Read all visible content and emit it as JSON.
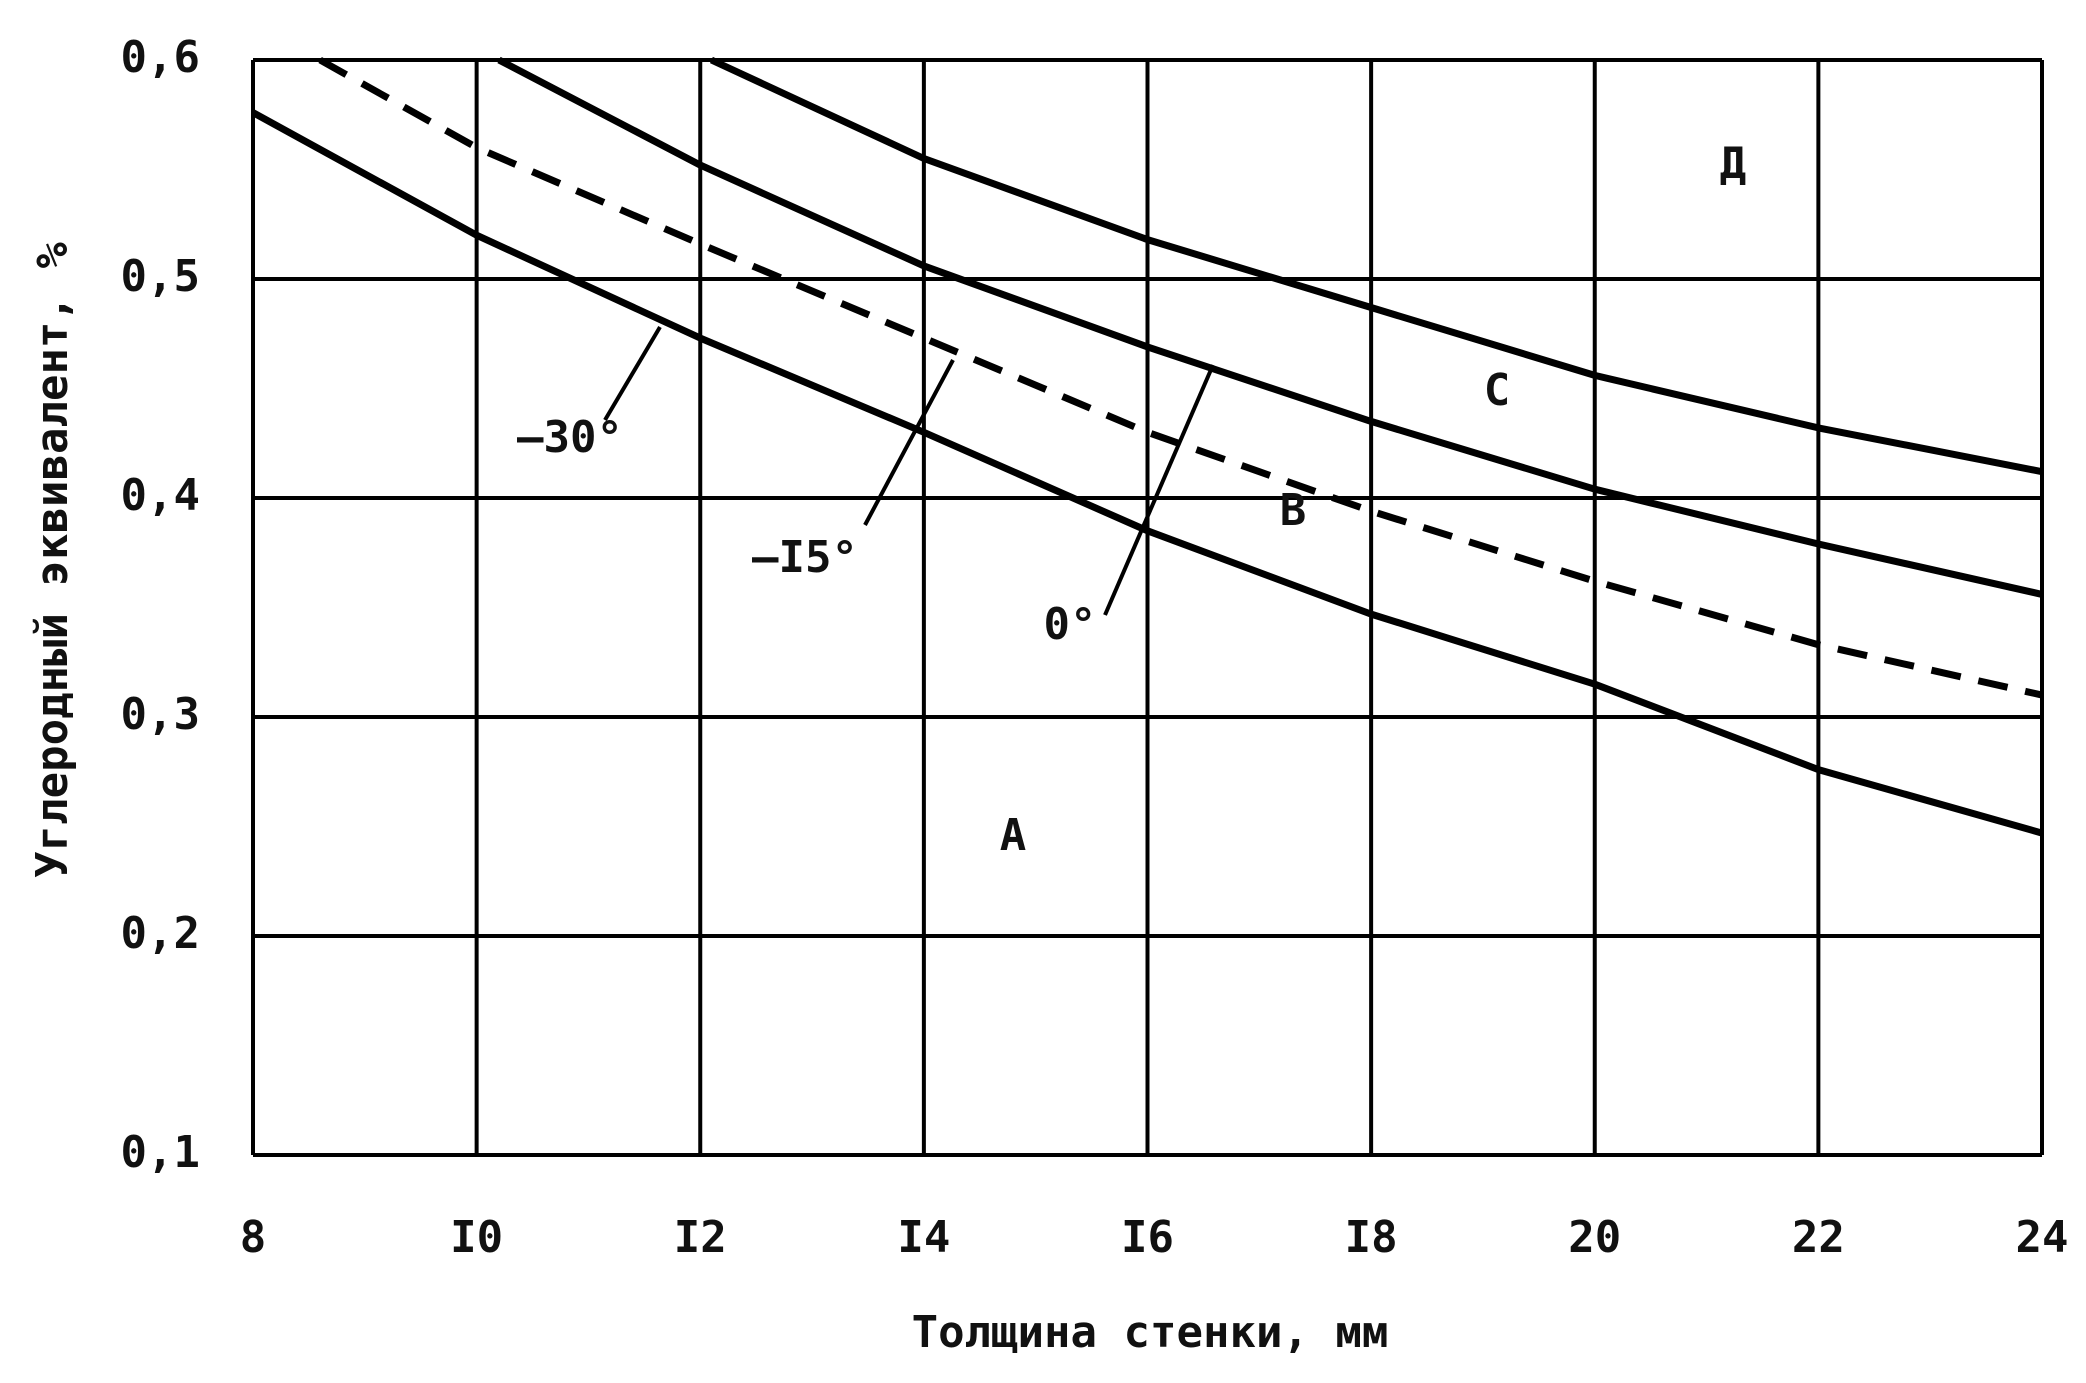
{
  "chart_data": {
    "type": "line",
    "x_label": "Толщина стенки, мм",
    "y_label": "Углеродный эквивалент, %",
    "xlim": [
      8,
      24
    ],
    "xticks": [
      8,
      {
        "value": 10,
        "label": "I0"
      },
      {
        "value": 12,
        "label": "I2"
      },
      {
        "value": 14,
        "label": "I4"
      },
      {
        "value": 16,
        "label": "I6"
      },
      {
        "value": 18,
        "label": "I8"
      },
      20,
      22,
      24
    ],
    "ylim": [
      0.1,
      0.6
    ],
    "yticks": [
      {
        "value": 0.1,
        "label": "0,1"
      },
      {
        "value": 0.2,
        "label": "0,2"
      },
      {
        "value": 0.3,
        "label": "0,3"
      },
      {
        "value": 0.4,
        "label": "0,4"
      },
      {
        "value": 0.5,
        "label": "0,5"
      },
      {
        "value": 0.6,
        "label": "0,6"
      }
    ],
    "grid": true,
    "series": [
      {
        "color": "#000000",
        "dashed": false,
        "x": [
          8,
          10,
          12,
          14,
          16,
          18,
          20,
          22,
          24
        ],
        "values": [
          0.576,
          0.52,
          0.473,
          0.43,
          0.385,
          0.347,
          0.315,
          0.276,
          0.247
        ]
      },
      {
        "color": "#000000",
        "dashed": true,
        "x": [
          8.6,
          10,
          12,
          14,
          16,
          18,
          20,
          22,
          24
        ],
        "values": [
          0.6,
          0.56,
          0.516,
          0.473,
          0.43,
          0.394,
          0.362,
          0.333,
          0.31
        ]
      },
      {
        "color": "#000000",
        "dashed": false,
        "x": [
          10.2,
          12,
          14,
          16,
          18,
          20,
          22,
          24
        ],
        "values": [
          0.6,
          0.552,
          0.506,
          0.469,
          0.435,
          0.404,
          0.379,
          0.356
        ]
      },
      {
        "color": "#000000",
        "dashed": false,
        "x": [
          12.1,
          14,
          16,
          18,
          20,
          22,
          24
        ],
        "values": [
          0.6,
          0.555,
          0.518,
          0.487,
          0.456,
          0.432,
          0.412
        ]
      }
    ],
    "annotations": [
      "–30°",
      "–I5°",
      "0°"
    ],
    "region_labels": [
      "А",
      "В",
      "С",
      "Д"
    ]
  }
}
